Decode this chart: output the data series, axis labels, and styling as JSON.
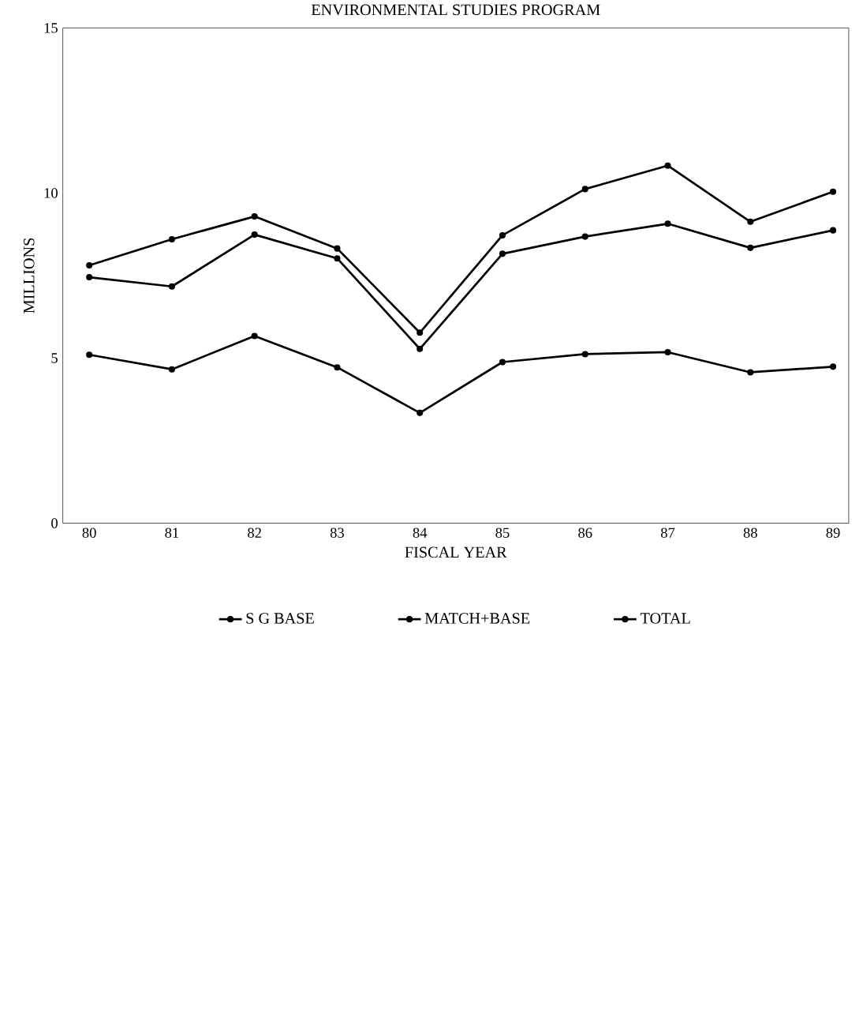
{
  "chart_data": {
    "type": "line",
    "title": "ENVIRONMENTAL STUDIES PROGRAM",
    "xlabel": "FISCAL YEAR",
    "ylabel": "MILLIONS",
    "categories": [
      "80",
      "81",
      "82",
      "83",
      "84",
      "85",
      "86",
      "87",
      "88",
      "89"
    ],
    "series": [
      {
        "name": "S G BASE",
        "color": "#000000",
        "values": [
          5.1,
          4.66,
          5.67,
          4.72,
          3.34,
          4.88,
          5.12,
          5.18,
          4.57,
          4.74
        ]
      },
      {
        "name": "MATCH+BASE",
        "color": "#000000",
        "values": [
          7.45,
          7.17,
          8.74,
          8.02,
          5.28,
          8.16,
          8.68,
          9.07,
          8.34,
          8.87
        ]
      },
      {
        "name": "TOTAL",
        "color": "#000000",
        "values": [
          7.81,
          8.6,
          9.29,
          8.32,
          5.77,
          8.72,
          10.12,
          10.83,
          9.13,
          10.04
        ]
      }
    ],
    "ylim": [
      0,
      15
    ],
    "yticks": [
      0,
      5,
      10,
      15
    ],
    "grid": false,
    "legend": "bottom",
    "marker": "circle",
    "line_style": "solid"
  }
}
